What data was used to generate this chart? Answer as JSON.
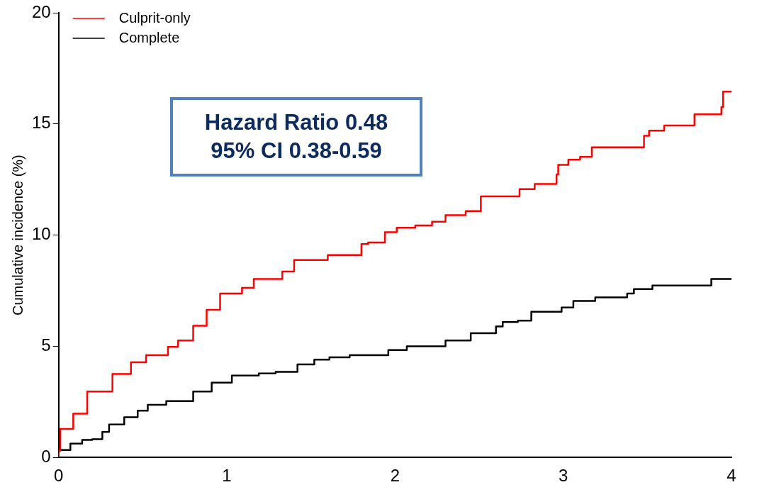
{
  "chart_data": {
    "type": "step",
    "ylabel": "Cumulative incidence (%)",
    "xlim": [
      0,
      4
    ],
    "xticks": [
      0,
      1,
      2,
      3,
      4
    ],
    "ylim": [
      0,
      20
    ],
    "yticks": [
      0,
      5,
      10,
      15,
      20
    ],
    "grid": false,
    "legend": "top left",
    "marker": "none",
    "line_style": "solid",
    "annotations": [
      "Hazard Ratio 0.48",
      "95% CI 0.38-0.59"
    ],
    "series": [
      {
        "name": "Culprit-only",
        "color": "#ff0000",
        "x": [
          0,
          0.01,
          0.087,
          0.17,
          0.32,
          0.43,
          0.52,
          0.65,
          0.71,
          0.8,
          0.88,
          0.96,
          1.09,
          1.16,
          1.33,
          1.4,
          1.6,
          1.7,
          1.8,
          1.84,
          1.94,
          2.01,
          2.12,
          2.22,
          2.3,
          2.42,
          2.51,
          2.74,
          2.83,
          2.96,
          2.97,
          3.03,
          3.1,
          3.17,
          3.29,
          3.48,
          3.51,
          3.6,
          3.65,
          3.78,
          3.8,
          3.94,
          3.95,
          3.99,
          4
        ],
        "values": [
          0,
          0.3,
          1.28,
          1.97,
          2.96,
          3.75,
          4.28,
          4.6,
          4.97,
          5.26,
          5.92,
          6.64,
          7.37,
          7.63,
          8.03,
          8.36,
          8.88,
          9.1,
          9.1,
          9.6,
          9.67,
          10.13,
          10.33,
          10.43,
          10.6,
          10.9,
          11.08,
          11.74,
          12.07,
          12.3,
          12.73,
          13.16,
          13.39,
          13.52,
          13.95,
          13.95,
          14.47,
          14.7,
          14.93,
          14.93,
          15.43,
          15.43,
          15.76,
          16.45,
          16.45
        ]
      },
      {
        "name": "Complete",
        "color": "#000000",
        "x": [
          0,
          0.07,
          0.14,
          0.2,
          0.26,
          0.3,
          0.39,
          0.47,
          0.53,
          0.64,
          0.7,
          0.8,
          0.91,
          1.03,
          1.19,
          1.29,
          1.42,
          1.52,
          1.61,
          1.73,
          1.83,
          1.96,
          2.07,
          2.16,
          2.3,
          2.45,
          2.6,
          2.64,
          2.73,
          2.81,
          2.99,
          3.06,
          3.19,
          3.38,
          3.42,
          3.53,
          3.62,
          3.88,
          3.89,
          4
        ],
        "values": [
          0,
          0.33,
          0.62,
          0.79,
          0.82,
          1.15,
          1.48,
          1.81,
          2.1,
          2.37,
          2.53,
          2.53,
          2.96,
          3.36,
          3.68,
          3.78,
          3.85,
          4.18,
          4.4,
          4.5,
          4.6,
          4.6,
          4.83,
          5.0,
          5.0,
          5.26,
          5.59,
          5.89,
          6.09,
          6.15,
          6.55,
          6.74,
          7.04,
          7.2,
          7.37,
          7.57,
          7.73,
          7.73,
          8.03,
          8.03
        ]
      }
    ]
  }
}
